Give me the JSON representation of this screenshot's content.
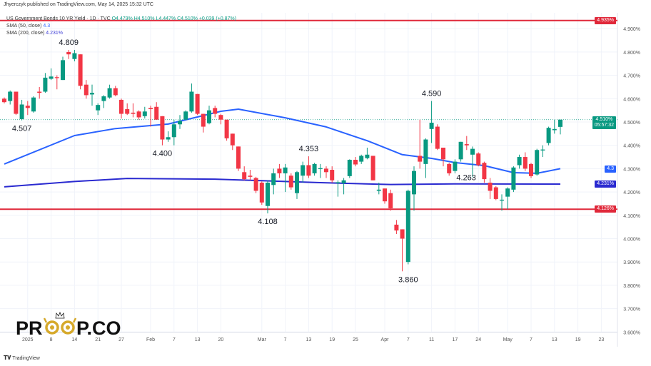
{
  "byline": "Jhyerczyk published on TradingView.com, May 14, 2025 15:32 UTC",
  "legend": {
    "symbol": "US Government Bonds 10 YR Yield · 1D · TVC",
    "open": "O4.479%",
    "high": "H4.510%",
    "low": "L4.447%",
    "close": "C4.510%",
    "change": "+0.039 (+0.87%)",
    "sma50_label": "SMA (50, close)",
    "sma50_value": "4.3",
    "sma200_label": "SMA (200, close)",
    "sma200_value": "4.231%"
  },
  "footer": {
    "brand": "TradingView"
  },
  "logo": {
    "text_left": "PR",
    "text_right": "P.CO"
  },
  "colors": {
    "up": "#089981",
    "down": "#f23645",
    "sma50": "#2962ff",
    "sma200": "#2a2ad0",
    "level": "#e0283a",
    "last": "#089981"
  },
  "price_axis": {
    "ticks": [
      "4.900%",
      "4.800%",
      "4.700%",
      "4.600%",
      "4.500%",
      "4.400%",
      "4.300%",
      "4.200%",
      "4.100%",
      "4.000%",
      "3.900%",
      "3.800%",
      "3.700%",
      "3.600%"
    ],
    "tags": {
      "upper_level": "4.935%",
      "last_price": "4.510%",
      "countdown": "05:57:32",
      "sma50": "4.3",
      "sma200": "4.231%",
      "lower_level": "4.126%"
    }
  },
  "levels": [
    4.935,
    4.126
  ],
  "last_price": 4.51,
  "chart_data": {
    "type": "candlestick",
    "ylim": [
      3.58,
      4.98
    ],
    "x_labels": [
      {
        "label": "2025",
        "index": 4
      },
      {
        "label": "8",
        "index": 8
      },
      {
        "label": "14",
        "index": 12
      },
      {
        "label": "21",
        "index": 16
      },
      {
        "label": "27",
        "index": 20
      },
      {
        "label": "Feb",
        "index": 25
      },
      {
        "label": "7",
        "index": 29
      },
      {
        "label": "13",
        "index": 33
      },
      {
        "label": "20",
        "index": 37
      },
      {
        "label": "Mar",
        "index": 44
      },
      {
        "label": "7",
        "index": 48
      },
      {
        "label": "13",
        "index": 52
      },
      {
        "label": "19",
        "index": 56
      },
      {
        "label": "25",
        "index": 60
      },
      {
        "label": "Apr",
        "index": 65
      },
      {
        "label": "7",
        "index": 69
      },
      {
        "label": "11",
        "index": 73
      },
      {
        "label": "17",
        "index": 77
      },
      {
        "label": "24",
        "index": 81
      },
      {
        "label": "May",
        "index": 86
      },
      {
        "label": "7",
        "index": 90
      },
      {
        "label": "13",
        "index": 94
      },
      {
        "label": "19",
        "index": 98
      },
      {
        "label": "23",
        "index": 102
      }
    ],
    "candles": [
      [
        4.6,
        4.605,
        4.58,
        4.585
      ],
      [
        4.59,
        4.635,
        4.575,
        4.63
      ],
      [
        4.63,
        4.63,
        4.53,
        4.535
      ],
      [
        4.512,
        4.595,
        4.507,
        4.575
      ],
      [
        4.57,
        4.59,
        4.53,
        4.56
      ],
      [
        4.545,
        4.61,
        4.54,
        4.605
      ],
      [
        4.63,
        4.65,
        4.6,
        4.625
      ],
      [
        4.63,
        4.71,
        4.625,
        4.69
      ],
      [
        4.685,
        4.73,
        4.68,
        4.695
      ],
      [
        4.692,
        4.7,
        4.64,
        4.69
      ],
      [
        4.68,
        4.78,
        4.68,
        4.765
      ],
      [
        4.8,
        4.809,
        4.77,
        4.79
      ],
      [
        4.77,
        4.809,
        4.76,
        4.795
      ],
      [
        4.79,
        4.79,
        4.64,
        4.655
      ],
      [
        4.66,
        4.68,
        4.6,
        4.615
      ],
      [
        4.618,
        4.66,
        4.57,
        4.625
      ],
      [
        4.55,
        4.58,
        4.53,
        4.573
      ],
      [
        4.59,
        4.615,
        4.56,
        4.61
      ],
      [
        4.605,
        4.66,
        4.6,
        4.645
      ],
      [
        4.645,
        4.655,
        4.61,
        4.615
      ],
      [
        4.595,
        4.6,
        4.515,
        4.535
      ],
      [
        4.555,
        4.58,
        4.53,
        4.535
      ],
      [
        4.54,
        4.58,
        4.52,
        4.535
      ],
      [
        4.545,
        4.55,
        4.51,
        4.52
      ],
      [
        4.525,
        4.565,
        4.515,
        4.545
      ],
      [
        4.56,
        4.57,
        4.48,
        4.555
      ],
      [
        4.565,
        4.585,
        4.51,
        4.51
      ],
      [
        4.525,
        4.525,
        4.4,
        4.425
      ],
      [
        4.425,
        4.46,
        4.415,
        4.435
      ],
      [
        4.435,
        4.51,
        4.4,
        4.49
      ],
      [
        4.49,
        4.53,
        4.47,
        4.505
      ],
      [
        4.51,
        4.55,
        4.51,
        4.545
      ],
      [
        4.545,
        4.665,
        4.54,
        4.63
      ],
      [
        4.62,
        4.62,
        4.53,
        4.535
      ],
      [
        4.535,
        4.535,
        4.455,
        4.48
      ],
      [
        4.495,
        4.57,
        4.49,
        4.55
      ],
      [
        4.56,
        4.57,
        4.52,
        4.535
      ],
      [
        4.53,
        4.535,
        4.49,
        4.51
      ],
      [
        4.51,
        4.51,
        4.42,
        4.43
      ],
      [
        4.45,
        4.45,
        4.38,
        4.4
      ],
      [
        4.395,
        4.395,
        4.29,
        4.3
      ],
      [
        4.285,
        4.31,
        4.25,
        4.255
      ],
      [
        4.27,
        4.295,
        4.25,
        4.265
      ],
      [
        4.26,
        4.265,
        4.195,
        4.205
      ],
      [
        4.24,
        4.245,
        4.145,
        4.155
      ],
      [
        4.14,
        4.25,
        4.108,
        4.24
      ],
      [
        4.23,
        4.3,
        4.19,
        4.28
      ],
      [
        4.3,
        4.32,
        4.26,
        4.28
      ],
      [
        4.28,
        4.32,
        4.2,
        4.305
      ],
      [
        4.27,
        4.28,
        4.21,
        4.22
      ],
      [
        4.195,
        4.29,
        4.17,
        4.285
      ],
      [
        4.27,
        4.33,
        4.24,
        4.315
      ],
      [
        4.315,
        4.353,
        4.26,
        4.27
      ],
      [
        4.28,
        4.325,
        4.27,
        4.32
      ],
      [
        4.298,
        4.32,
        4.26,
        4.302
      ],
      [
        4.3,
        4.31,
        4.26,
        4.285
      ],
      [
        4.295,
        4.31,
        4.24,
        4.25
      ],
      [
        4.238,
        4.25,
        4.18,
        4.242
      ],
      [
        4.238,
        4.26,
        4.19,
        4.25
      ],
      [
        4.268,
        4.34,
        4.26,
        4.338
      ],
      [
        4.338,
        4.35,
        4.31,
        4.318
      ],
      [
        4.33,
        4.36,
        4.32,
        4.355
      ],
      [
        4.345,
        4.39,
        4.34,
        4.36
      ],
      [
        4.355,
        4.355,
        4.25,
        4.25
      ],
      [
        4.205,
        4.24,
        4.19,
        4.21
      ],
      [
        4.215,
        4.215,
        4.15,
        4.16
      ],
      [
        4.195,
        4.21,
        4.12,
        4.13
      ],
      [
        4.06,
        4.08,
        4.02,
        4.035
      ],
      [
        4.04,
        4.04,
        3.86,
        4.0
      ],
      [
        3.9,
        4.21,
        3.89,
        4.205
      ],
      [
        4.19,
        4.31,
        4.12,
        4.29
      ],
      [
        4.355,
        4.51,
        4.3,
        4.33
      ],
      [
        4.32,
        4.43,
        4.26,
        4.425
      ],
      [
        4.47,
        4.59,
        4.41,
        4.497
      ],
      [
        4.48,
        4.49,
        4.38,
        4.385
      ],
      [
        4.39,
        4.39,
        4.31,
        4.34
      ],
      [
        4.32,
        4.325,
        4.27,
        4.28
      ],
      [
        4.29,
        4.34,
        4.28,
        4.33
      ],
      [
        4.34,
        4.415,
        4.33,
        4.415
      ],
      [
        4.405,
        4.44,
        4.38,
        4.4
      ],
      [
        4.36,
        4.395,
        4.263,
        4.385
      ],
      [
        4.365,
        4.37,
        4.31,
        4.315
      ],
      [
        4.325,
        4.33,
        4.24,
        4.255
      ],
      [
        4.24,
        4.26,
        4.17,
        4.205
      ],
      [
        4.22,
        4.225,
        4.165,
        4.17
      ],
      [
        4.163,
        4.19,
        4.12,
        4.167
      ],
      [
        4.18,
        4.22,
        4.126,
        4.215
      ],
      [
        4.21,
        4.31,
        4.2,
        4.305
      ],
      [
        4.315,
        4.36,
        4.3,
        4.35
      ],
      [
        4.35,
        4.37,
        4.29,
        4.3
      ],
      [
        4.32,
        4.325,
        4.26,
        4.268
      ],
      [
        4.275,
        4.385,
        4.27,
        4.38
      ],
      [
        4.378,
        4.4,
        4.35,
        4.382
      ],
      [
        4.41,
        4.48,
        4.4,
        4.475
      ],
      [
        4.465,
        4.51,
        4.45,
        4.47
      ],
      [
        4.479,
        4.51,
        4.447,
        4.51
      ]
    ],
    "sma50": [
      [
        0,
        4.32
      ],
      [
        12,
        4.442
      ],
      [
        19,
        4.472
      ],
      [
        28,
        4.491
      ],
      [
        37,
        4.546
      ],
      [
        40,
        4.555
      ],
      [
        48,
        4.518
      ],
      [
        55,
        4.479
      ],
      [
        62,
        4.42
      ],
      [
        64,
        4.4
      ],
      [
        68,
        4.36
      ],
      [
        73,
        4.344
      ],
      [
        77,
        4.326
      ],
      [
        82,
        4.313
      ],
      [
        87,
        4.283
      ],
      [
        91,
        4.28
      ],
      [
        95,
        4.3
      ]
    ],
    "sma200": [
      [
        0,
        4.222
      ],
      [
        12,
        4.245
      ],
      [
        21,
        4.258
      ],
      [
        36,
        4.255
      ],
      [
        54,
        4.24
      ],
      [
        66,
        4.232
      ],
      [
        78,
        4.235
      ],
      [
        95,
        4.234
      ]
    ],
    "annotations": [
      {
        "text": "4.809",
        "index": 11,
        "value": 4.809,
        "pos": "above"
      },
      {
        "text": "4.507",
        "index": 3,
        "value": 4.507,
        "pos": "below"
      },
      {
        "text": "4.400",
        "index": 27,
        "value": 4.4,
        "pos": "below"
      },
      {
        "text": "4.108",
        "index": 45,
        "value": 4.108,
        "pos": "below"
      },
      {
        "text": "4.353",
        "index": 52,
        "value": 4.353,
        "pos": "above"
      },
      {
        "text": "3.860",
        "index": 69,
        "value": 3.86,
        "pos": "below"
      },
      {
        "text": "4.590",
        "index": 73,
        "value": 4.59,
        "pos": "above"
      },
      {
        "text": "4.263",
        "index": 77,
        "value": 4.263,
        "pos": "right"
      }
    ]
  }
}
